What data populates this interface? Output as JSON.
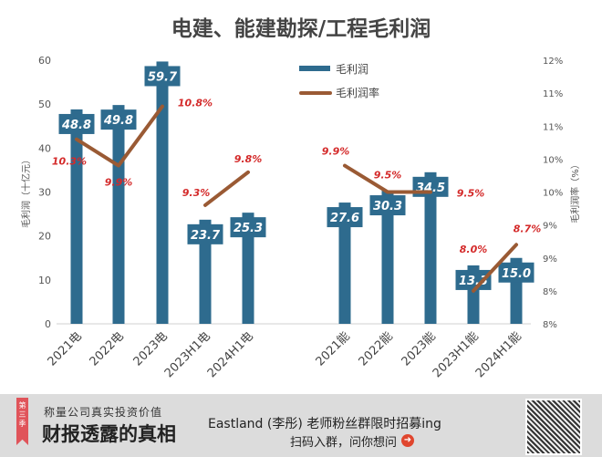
{
  "chart_data": {
    "type": "bar+line",
    "title": "电建、能建勘探/工程毛利润",
    "categories": [
      "2021电",
      "2022电",
      "2023电",
      "2023H1电",
      "2024H1电",
      "2021能",
      "2022能",
      "2023能",
      "2023H1能",
      "2024H1能"
    ],
    "series": [
      {
        "name": "毛利润",
        "type": "bar",
        "axis": "left",
        "values": [
          48.8,
          49.8,
          59.7,
          23.7,
          25.3,
          27.6,
          30.3,
          34.5,
          13.3,
          15.0
        ],
        "labels": [
          "48.8",
          "49.8",
          "59.7",
          "23.7",
          "25.3",
          "27.6",
          "30.3",
          "34.5",
          "13.3",
          "15.0"
        ]
      },
      {
        "name": "毛利润率",
        "type": "line",
        "axis": "right",
        "values": [
          10.3,
          9.9,
          10.8,
          9.3,
          9.8,
          9.9,
          9.5,
          9.5,
          8.0,
          8.7
        ],
        "labels": [
          "10.3%",
          "9.9%",
          "10.8%",
          "9.3%",
          "9.8%",
          "9.9%",
          "9.5%",
          "9.5%",
          "8.0%",
          "8.7%"
        ],
        "segments": [
          [
            0,
            2
          ],
          [
            3,
            4
          ],
          [
            5,
            7
          ],
          [
            8,
            9
          ]
        ]
      }
    ],
    "ylabel": "毛利润（十亿元）",
    "y2label": "毛利润率（%）",
    "ylim": [
      0,
      60
    ],
    "y_ticks": [
      "0",
      "10",
      "20",
      "30",
      "40",
      "50",
      "60"
    ],
    "y2lim": [
      7.5,
      11.5
    ],
    "y2_ticks": [
      "8%",
      "8%",
      "9%",
      "9%",
      "10%",
      "10%",
      "11%",
      "11%",
      "12%"
    ],
    "legend": "top-center",
    "colors": {
      "bar": "#2e6b8e",
      "line": "#9a5a34",
      "label": "#d42a2a"
    }
  },
  "banner": {
    "ribbon": "第三季",
    "slogan": "称量公司真实投资价值",
    "brand": "财报透露的真相",
    "promo1": "Eastland (李彤) 老师粉丝群限时招募ing",
    "promo2": "扫码入群，问你想问"
  }
}
